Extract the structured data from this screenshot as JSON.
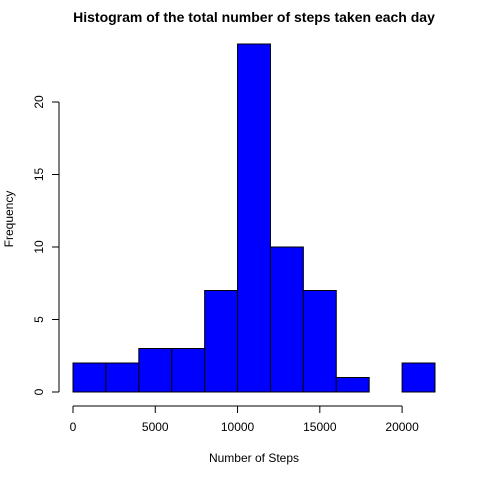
{
  "chart_data": {
    "type": "bar",
    "title": "Histogram of the total number of steps taken each day",
    "xlabel": "Number of Steps",
    "ylabel": "Frequency",
    "bin_edges": [
      0,
      2000,
      4000,
      6000,
      8000,
      10000,
      12000,
      14000,
      16000,
      18000,
      20000,
      22000
    ],
    "values": [
      2,
      2,
      3,
      3,
      7,
      24,
      10,
      7,
      1,
      0,
      2
    ],
    "xlim": [
      0,
      22000
    ],
    "ylim": [
      0,
      24
    ],
    "xticks": [
      0,
      5000,
      10000,
      15000,
      20000
    ],
    "xtick_labels": [
      "0",
      "5000",
      "10000",
      "15000",
      "20000"
    ],
    "yticks": [
      0,
      5,
      10,
      15,
      20
    ],
    "ytick_labels": [
      "0",
      "5",
      "10",
      "15",
      "20"
    ],
    "bar_color": "#0000FF",
    "grid": false,
    "legend": "none"
  }
}
